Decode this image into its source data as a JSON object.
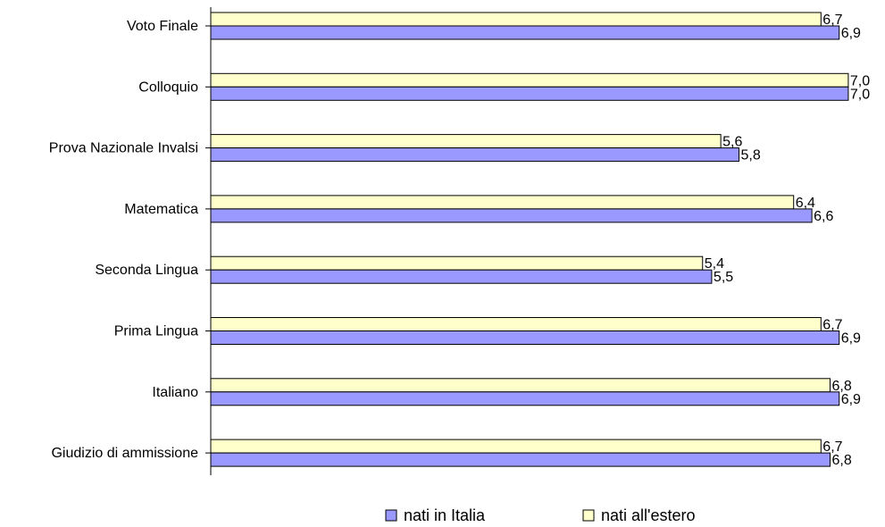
{
  "chart_data": {
    "type": "bar",
    "orientation": "horizontal",
    "categories": [
      "Voto Finale",
      "Colloquio",
      "Prova Nazionale Invalsi",
      "Matematica",
      "Seconda Lingua",
      "Prima Lingua",
      "Italiano",
      "Giudizio di ammissione"
    ],
    "series": [
      {
        "name": "nati all'estero",
        "color": "#ffffcc",
        "values": [
          6.7,
          7.0,
          5.6,
          6.4,
          5.4,
          6.7,
          6.8,
          6.7
        ],
        "labels": [
          "6,7",
          "7,0",
          "5,6",
          "6,4",
          "5,4",
          "6,7",
          "6,8",
          "6,7"
        ]
      },
      {
        "name": "nati in Italia",
        "color": "#9999ff",
        "values": [
          6.9,
          7.0,
          5.8,
          6.6,
          5.5,
          6.9,
          6.9,
          6.8
        ],
        "labels": [
          "6,9",
          "7,0",
          "5,8",
          "6,6",
          "5,5",
          "6,9",
          "6,9",
          "6,8"
        ]
      }
    ],
    "legend_order": [
      "nati in Italia",
      "nati all'estero"
    ],
    "legend_position": "bottom",
    "grid": false,
    "xlim": [
      0,
      7.05
    ],
    "title": "",
    "xlabel": "",
    "ylabel": ""
  }
}
